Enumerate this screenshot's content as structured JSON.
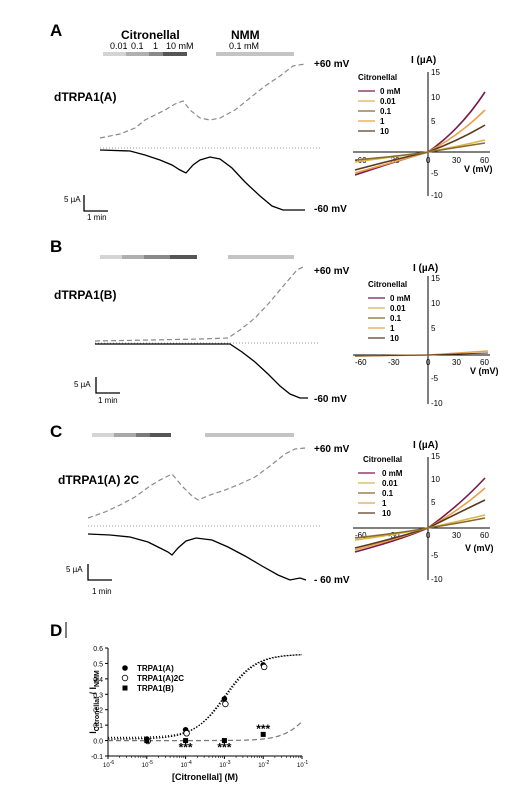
{
  "panel_letters": [
    "A",
    "B",
    "C",
    "D"
  ],
  "stim": {
    "citronellal_label": "Citronellal",
    "citronellal_concs": [
      "0.01",
      "0.1",
      "1",
      "10 mM"
    ],
    "nmm_label": "NMM",
    "nmm_conc": "0.1 mM"
  },
  "traces": [
    {
      "name": "dTRPA1(A)",
      "pos_label": "+60 mV",
      "neg_label": "-60 mV",
      "scale_y": "5 µA",
      "scale_x": "1 min"
    },
    {
      "name": "dTRPA1(B)",
      "pos_label": "+60 mV",
      "neg_label": "-60 mV",
      "scale_y": "5 µA",
      "scale_x": "1 min"
    },
    {
      "name": "dTRPA1(A) 2C",
      "pos_label": "+60 mV",
      "neg_label": "- 60 mV",
      "scale_y": "5 µA",
      "scale_x": "1 min"
    }
  ],
  "iv": [
    {
      "ylabel": "I (µA)",
      "xlabel": "V (mV)",
      "legend_title": "Citronellal",
      "legend": [
        "0 mM",
        "0.01",
        "0.1",
        "1",
        "10"
      ],
      "yticks": [
        "15",
        "10",
        "5",
        "-5",
        "-10"
      ],
      "xticks": [
        "-60",
        "-30",
        "0",
        "30",
        "60"
      ]
    },
    {
      "ylabel": "I (µA)",
      "xlabel": "V (mV)",
      "legend_title": "Citronellal",
      "legend": [
        "0 mM",
        "0.01",
        "0.1",
        "1",
        "10"
      ],
      "yticks": [
        "15",
        "10",
        "5",
        "-5",
        "-10"
      ],
      "xticks": [
        "-60",
        "-30",
        "0",
        "30",
        "60"
      ]
    },
    {
      "ylabel": "I (µA)",
      "xlabel": "V (mV)",
      "legend_title": "Citronellal",
      "legend": [
        "0 mM",
        "0.01",
        "0.1",
        "1",
        "10"
      ],
      "yticks": [
        "15",
        "10",
        "5",
        "-5",
        "-10"
      ],
      "xticks": [
        "-60",
        "-30",
        "0",
        "30",
        "60"
      ]
    }
  ],
  "iv_colors": [
    "#7a1a4a",
    "#d9b54a",
    "#8a6a2a",
    "#e8a24a",
    "#5a3a1a"
  ],
  "chart_data": {
    "type": "scatter",
    "title": "",
    "xlabel": "[Citronellal] (M)",
    "ylabel": "I_Citronellal / I_NMM",
    "x_scale": "log",
    "xlim": [
      1e-06,
      0.1
    ],
    "ylim": [
      -0.1,
      0.6
    ],
    "yticks": [
      "0.6",
      "0.5",
      "0.4",
      "0.3",
      "0.2",
      "0.1",
      "0.0",
      "-0.1"
    ],
    "xtick_bases": [
      "10",
      "10",
      "10",
      "10",
      "10",
      "10"
    ],
    "xtick_exps": [
      "-6",
      "-5",
      "-4",
      "-3",
      "-2",
      "-1"
    ],
    "legend_placement": "left",
    "x": [
      1e-05,
      0.0001,
      0.001,
      0.01
    ],
    "series": [
      {
        "name": "TRPA1(A)",
        "marker": "filled-circle",
        "values": [
          0.01,
          0.07,
          0.27,
          0.49
        ]
      },
      {
        "name": "TRPA1(A)2C",
        "marker": "open-circle",
        "values": [
          0.01,
          0.06,
          0.25,
          0.49
        ]
      },
      {
        "name": "TRPA1(B)",
        "marker": "filled-square",
        "values": [
          0.0,
          0.0,
          0.0,
          0.04
        ]
      }
    ],
    "annotations": [
      "***",
      "***",
      "***"
    ]
  }
}
